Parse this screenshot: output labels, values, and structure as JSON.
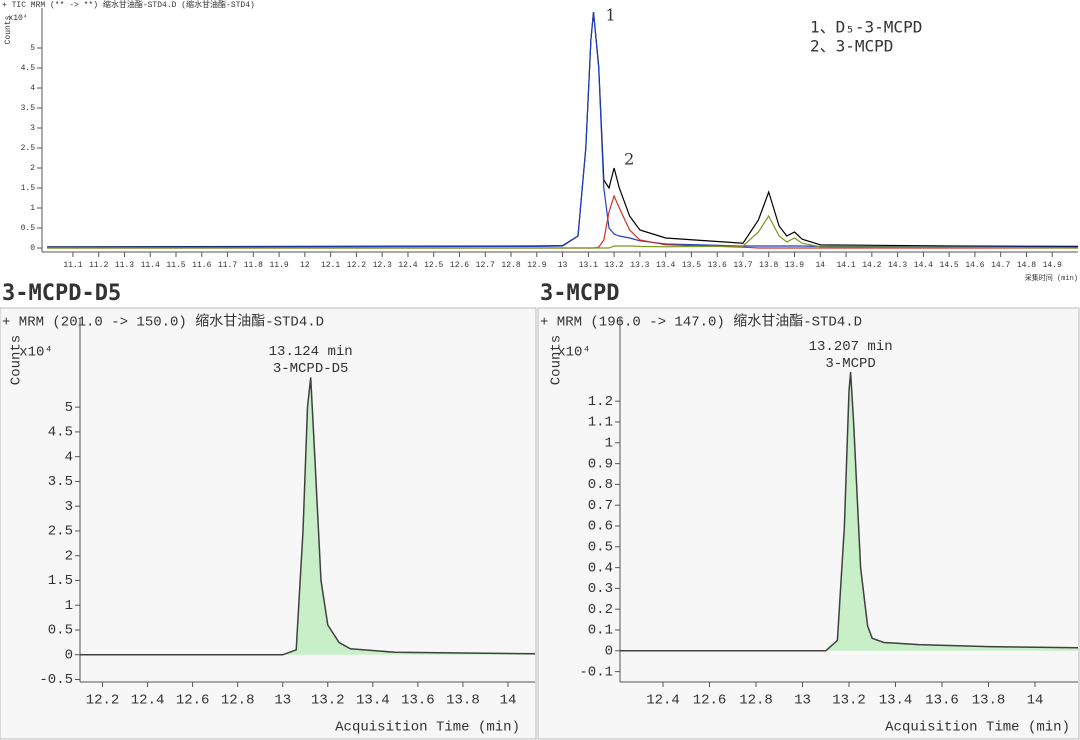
{
  "chart_data": [
    {
      "type": "line",
      "subtitle": "+ TIC MRM (** -> **) 缩水甘油酯-STD4.D (缩水甘油酯-STD4)",
      "ylabel": "Counts",
      "y_multiplier": "x10⁴",
      "xlabel": "采集时间 (min)",
      "annotations": [
        "1",
        "2"
      ],
      "legend_text": [
        "1、D₅-3-MCPD",
        "2、3-MCPD"
      ],
      "x": [
        11.0,
        12.9,
        13.0,
        13.06,
        13.09,
        13.11,
        13.12,
        13.14,
        13.16,
        13.18,
        13.2,
        13.22,
        13.26,
        13.3,
        13.4,
        13.7,
        13.76,
        13.8,
        13.84,
        13.87,
        13.9,
        13.93,
        14.0,
        14.5,
        15.0
      ],
      "series": [
        {
          "color": "#000000",
          "values": [
            0.03,
            0.05,
            0.06,
            0.3,
            2.5,
            5.2,
            5.9,
            4.55,
            1.7,
            1.5,
            2.0,
            1.5,
            0.8,
            0.45,
            0.25,
            0.12,
            0.7,
            1.4,
            0.55,
            0.3,
            0.4,
            0.22,
            0.08,
            0.05,
            0.04
          ]
        },
        {
          "color": "#1f3fbf",
          "values": [
            0.02,
            0.04,
            0.05,
            0.3,
            2.5,
            5.2,
            5.9,
            4.5,
            1.5,
            0.5,
            0.35,
            0.3,
            0.25,
            0.18,
            0.1,
            0.05,
            0.05,
            0.05,
            0.05,
            0.05,
            0.05,
            0.05,
            0.04,
            0.03,
            0.02
          ]
        },
        {
          "color": "#d03020",
          "values": [
            0,
            0,
            0,
            0,
            0,
            0,
            0,
            0.02,
            0.2,
            0.9,
            1.3,
            1.0,
            0.45,
            0.2,
            0.08,
            0.02,
            0,
            0,
            0,
            0,
            0,
            0,
            0,
            0,
            0
          ]
        },
        {
          "color": "#7a9a20",
          "values": [
            0,
            0,
            0,
            0,
            0,
            0,
            0,
            0,
            0,
            0,
            0.05,
            0.05,
            0.05,
            0.04,
            0.03,
            0.05,
            0.4,
            0.8,
            0.3,
            0.15,
            0.25,
            0.12,
            0.03,
            0.02,
            0
          ]
        }
      ],
      "xlim": [
        10.98,
        15.0
      ],
      "ylim": [
        -0.1,
        6.0
      ],
      "xticks": [
        11.1,
        11.2,
        11.3,
        11.4,
        11.5,
        11.6,
        11.7,
        11.8,
        11.9,
        12,
        12.1,
        12.2,
        12.3,
        12.4,
        12.5,
        12.6,
        12.7,
        12.8,
        12.9,
        13,
        13.1,
        13.2,
        13.3,
        13.4,
        13.5,
        13.6,
        13.7,
        13.8,
        13.9,
        14,
        14.1,
        14.2,
        14.3,
        14.4,
        14.5,
        14.6,
        14.7,
        14.8,
        14.9
      ],
      "yticks": [
        0,
        0.5,
        1,
        1.5,
        2,
        2.5,
        3,
        3.5,
        4,
        4.5,
        5
      ]
    },
    {
      "type": "line",
      "title": "3-MCPD-D5",
      "subtitle": "+ MRM (201.0 -> 150.0) 缩水甘油酯-STD4.D",
      "ylabel": "Counts",
      "y_multiplier": "x10⁴",
      "xlabel": "Acquisition Time (min)",
      "peak_label": [
        "13.124 min",
        "3-MCPD-D5"
      ],
      "color": "#404040",
      "fill": "#c8efc8",
      "x": [
        12.1,
        13.0,
        13.06,
        13.09,
        13.11,
        13.124,
        13.14,
        13.17,
        13.2,
        13.25,
        13.3,
        13.5,
        14.12
      ],
      "values": [
        0,
        0,
        0.1,
        2.5,
        5.0,
        5.6,
        4.2,
        1.5,
        0.6,
        0.25,
        0.12,
        0.05,
        0.02
      ],
      "xlim": [
        12.1,
        14.12
      ],
      "ylim": [
        -0.55,
        6.8
      ],
      "xticks": [
        12.2,
        12.4,
        12.6,
        12.8,
        13,
        13.2,
        13.4,
        13.6,
        13.8,
        14
      ],
      "yticks": [
        -0.5,
        0,
        0.5,
        1,
        1.5,
        2,
        2.5,
        3,
        3.5,
        4,
        4.5,
        5
      ]
    },
    {
      "type": "line",
      "title": "3-MCPD",
      "subtitle": "+ MRM (196.0 -> 147.0) 缩水甘油酯-STD4.D",
      "ylabel": "Counts",
      "y_multiplier": "x10⁴",
      "xlabel": "Acquisition Time (min)",
      "peak_label": [
        "13.207 min",
        "3-MCPD"
      ],
      "color": "#404040",
      "fill": "#c8efc8",
      "x": [
        12.215,
        13.1,
        13.15,
        13.18,
        13.2,
        13.207,
        13.22,
        13.25,
        13.28,
        13.3,
        13.35,
        13.5,
        13.8,
        14.185
      ],
      "values": [
        0,
        0,
        0.05,
        0.6,
        1.25,
        1.34,
        1.1,
        0.4,
        0.12,
        0.06,
        0.04,
        0.03,
        0.02,
        0.015
      ],
      "xlim": [
        12.215,
        14.185
      ],
      "ylim": [
        -0.15,
        1.6
      ],
      "xticks": [
        12.4,
        12.6,
        12.8,
        13,
        13.2,
        13.4,
        13.6,
        13.8,
        14
      ],
      "yticks": [
        -0.1,
        0,
        0.1,
        0.2,
        0.3,
        0.4,
        0.5,
        0.6,
        0.7,
        0.8,
        0.9,
        1,
        1.1,
        1.2
      ]
    }
  ]
}
